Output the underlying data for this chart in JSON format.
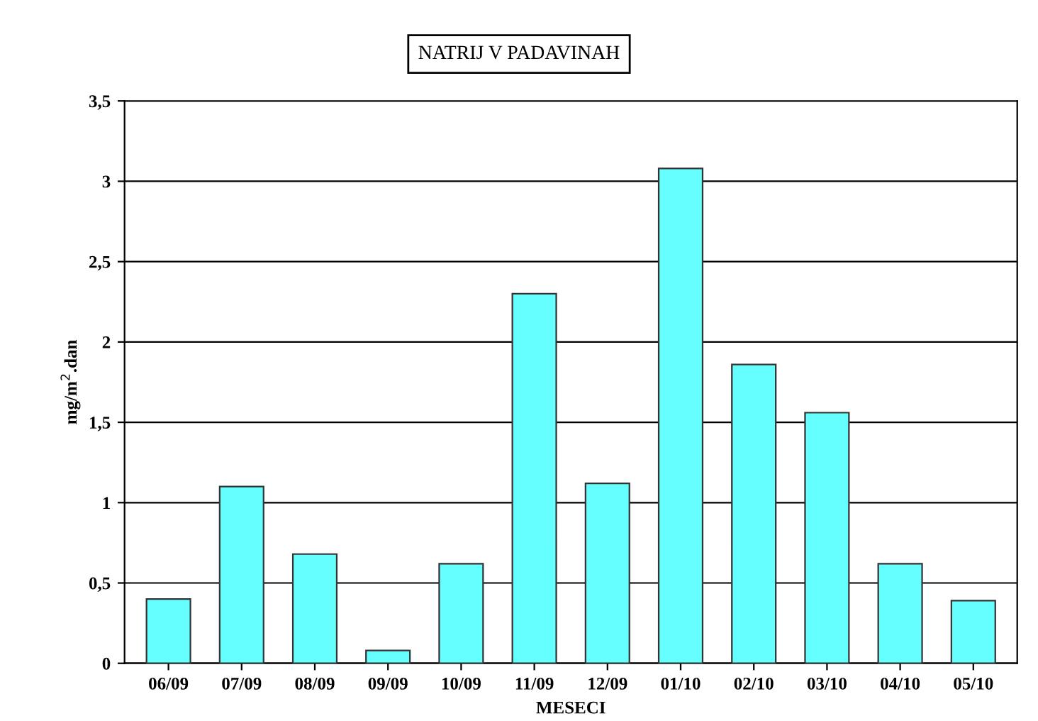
{
  "chart_data": {
    "type": "bar",
    "title": "NATRIJ V PADAVINAH",
    "xlabel": "MESECI",
    "ylabel": "mg/m$^{2}$.dan",
    "categories": [
      "06/09",
      "07/09",
      "08/09",
      "09/09",
      "10/09",
      "11/09",
      "12/09",
      "01/10",
      "02/10",
      "03/10",
      "04/10",
      "05/10"
    ],
    "values": [
      0.4,
      1.1,
      0.68,
      0.08,
      0.62,
      2.3,
      1.12,
      3.08,
      1.86,
      1.56,
      0.62,
      0.39
    ],
    "color": "#66ffff",
    "ylim": [
      0,
      3.5
    ],
    "yticks": [
      0,
      {
        "value": 0.5,
        "label": "0,5"
      },
      1,
      {
        "value": 1.5,
        "label": "1,5"
      },
      2,
      {
        "value": 2.5,
        "label": "2,5"
      },
      3,
      {
        "value": 3.5,
        "label": "3,5"
      }
    ],
    "grid": "y"
  }
}
